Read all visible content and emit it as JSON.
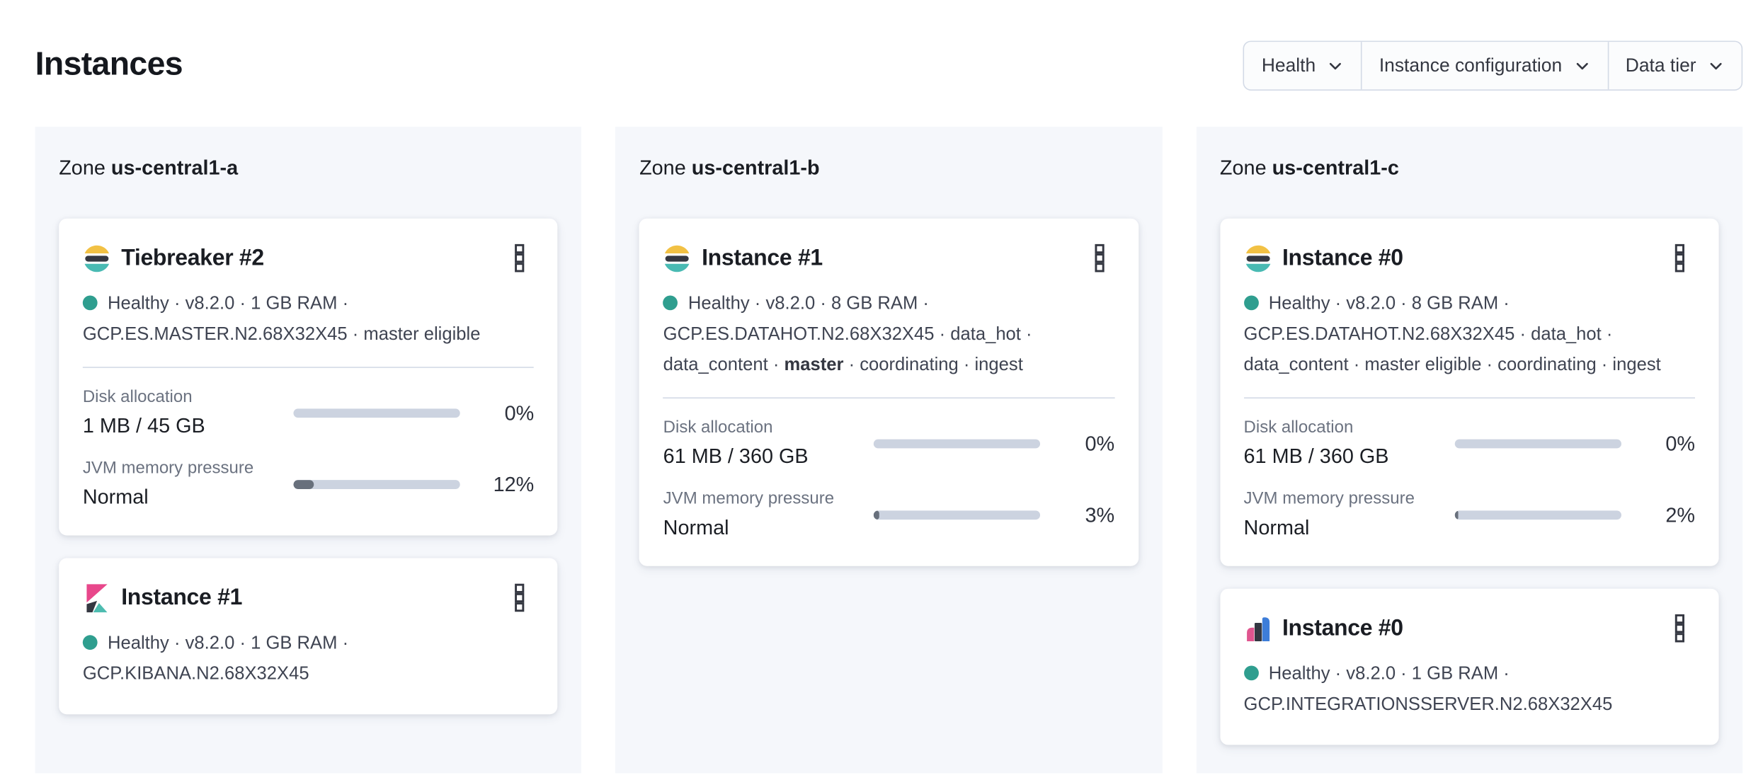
{
  "page": {
    "title": "Instances"
  },
  "filter_bar": {
    "buttons": [
      {
        "label": "Health"
      },
      {
        "label": "Instance configuration"
      },
      {
        "label": "Data tier"
      }
    ]
  },
  "icons": {
    "dropdown": "chevron-down-icon",
    "card_menu": "boxes-vertical-icon",
    "logos": {
      "elasticsearch": "elasticsearch-logo-icon",
      "kibana": "kibana-logo-icon",
      "integrations_server": "integrations-server-logo-icon"
    }
  },
  "colors": {
    "health_dot": "#2F9E8F",
    "panel_bg": "#F5F7FB",
    "card_bg": "#FFFFFF",
    "border": "#D3DAE6",
    "progress_track": "#CCD3E0",
    "progress_fill": "#68707C",
    "text_primary": "#1A1D23",
    "text_meta": "#3F4452",
    "text_label": "#6B7280",
    "logo_yellow": "#F2C144",
    "logo_dark": "#343741",
    "logo_teal": "#49BAB3",
    "logo_pink": "#E8478B",
    "logo_blue": "#3D7DD9"
  },
  "zones": [
    {
      "label_prefix": "Zone",
      "name": "us-central1-a",
      "cards": [
        {
          "logo": "elasticsearch",
          "title": "Tiebreaker #2",
          "meta_lines": [
            {
              "health_dot": true,
              "segments": [
                {
                  "text": "Healthy · v8.2.0 · 1 GB RAM ·"
                }
              ]
            },
            {
              "segments": [
                {
                  "text": "GCP.ES.MASTER.N2.68X32X45 · master eligible"
                }
              ]
            }
          ],
          "metrics": [
            {
              "label": "Disk allocation",
              "value": "1 MB / 45 GB",
              "percent": "0%",
              "fill": 0
            },
            {
              "label": "JVM memory pressure",
              "value": "Normal",
              "percent": "12%",
              "fill": 12
            }
          ]
        },
        {
          "logo": "kibana",
          "title": "Instance #1",
          "meta_lines": [
            {
              "health_dot": true,
              "segments": [
                {
                  "text": "Healthy · v8.2.0 · 1 GB RAM ·"
                }
              ]
            },
            {
              "segments": [
                {
                  "text": "GCP.KIBANA.N2.68X32X45"
                }
              ]
            }
          ],
          "metrics": []
        }
      ]
    },
    {
      "label_prefix": "Zone",
      "name": "us-central1-b",
      "cards": [
        {
          "logo": "elasticsearch",
          "title": "Instance #1",
          "meta_lines": [
            {
              "health_dot": true,
              "segments": [
                {
                  "text": "Healthy · v8.2.0 · 8 GB RAM ·"
                }
              ]
            },
            {
              "segments": [
                {
                  "text": "GCP.ES.DATAHOT.N2.68X32X45 · data_hot ·"
                }
              ]
            },
            {
              "segments": [
                {
                  "text": "data_content · "
                },
                {
                  "text": "master",
                  "bold": true
                },
                {
                  "text": " · coordinating · ingest"
                }
              ]
            }
          ],
          "metrics": [
            {
              "label": "Disk allocation",
              "value": "61 MB / 360 GB",
              "percent": "0%",
              "fill": 0
            },
            {
              "label": "JVM memory pressure",
              "value": "Normal",
              "percent": "3%",
              "fill": 3
            }
          ]
        }
      ]
    },
    {
      "label_prefix": "Zone",
      "name": "us-central1-c",
      "cards": [
        {
          "logo": "elasticsearch",
          "title": "Instance #0",
          "meta_lines": [
            {
              "health_dot": true,
              "segments": [
                {
                  "text": "Healthy · v8.2.0 · 8 GB RAM ·"
                }
              ]
            },
            {
              "segments": [
                {
                  "text": "GCP.ES.DATAHOT.N2.68X32X45 · data_hot ·"
                }
              ]
            },
            {
              "segments": [
                {
                  "text": "data_content · master eligible · coordinating · ingest"
                }
              ]
            }
          ],
          "metrics": [
            {
              "label": "Disk allocation",
              "value": "61 MB / 360 GB",
              "percent": "0%",
              "fill": 0
            },
            {
              "label": "JVM memory pressure",
              "value": "Normal",
              "percent": "2%",
              "fill": 2
            }
          ]
        },
        {
          "logo": "integrations_server",
          "title": "Instance #0",
          "meta_lines": [
            {
              "health_dot": true,
              "segments": [
                {
                  "text": "Healthy · v8.2.0 · 1 GB RAM ·"
                }
              ]
            },
            {
              "segments": [
                {
                  "text": "GCP.INTEGRATIONSSERVER.N2.68X32X45"
                }
              ]
            }
          ],
          "metrics": []
        }
      ]
    }
  ]
}
